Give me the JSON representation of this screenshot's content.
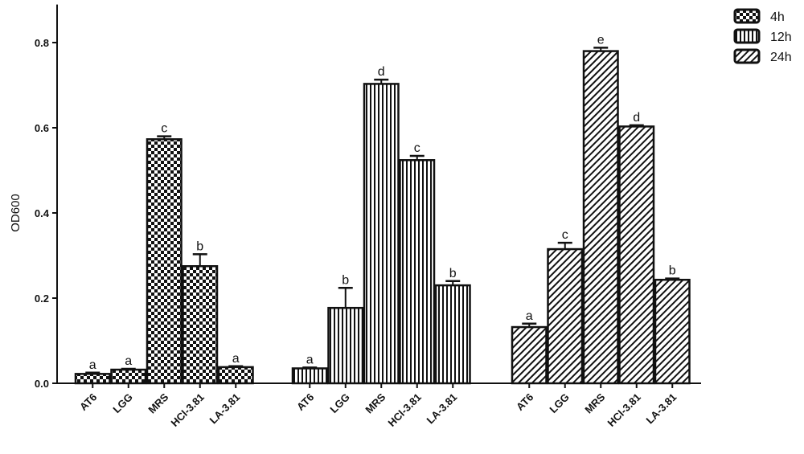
{
  "chart_data": {
    "type": "bar",
    "ylabel": "OD600",
    "xlabel": "",
    "ylim": [
      0,
      0.88
    ],
    "yticks": [
      "0.0",
      "0.2",
      "0.4",
      "0.6",
      "0.8"
    ],
    "categories": [
      "AT6",
      "LGG",
      "MRS",
      "HCl-3.81",
      "LA-3.81"
    ],
    "legend_position": "top-right",
    "grid": false,
    "series": [
      {
        "name": "4h",
        "pattern": "checkerboard",
        "values": [
          0.022,
          0.032,
          0.573,
          0.275,
          0.038
        ],
        "errors": [
          0.003,
          0.002,
          0.007,
          0.028,
          0.002
        ],
        "letters": [
          "a",
          "a",
          "c",
          "b",
          "a"
        ]
      },
      {
        "name": "12h",
        "pattern": "vertical-lines",
        "values": [
          0.035,
          0.177,
          0.703,
          0.524,
          0.23
        ],
        "errors": [
          0.002,
          0.047,
          0.01,
          0.01,
          0.01
        ],
        "letters": [
          "a",
          "b",
          "d",
          "c",
          "b"
        ]
      },
      {
        "name": "24h",
        "pattern": "diagonal-lines",
        "values": [
          0.132,
          0.315,
          0.78,
          0.603,
          0.243
        ],
        "errors": [
          0.008,
          0.015,
          0.008,
          0.003,
          0.003
        ],
        "letters": [
          "a",
          "c",
          "e",
          "d",
          "b"
        ]
      }
    ]
  }
}
